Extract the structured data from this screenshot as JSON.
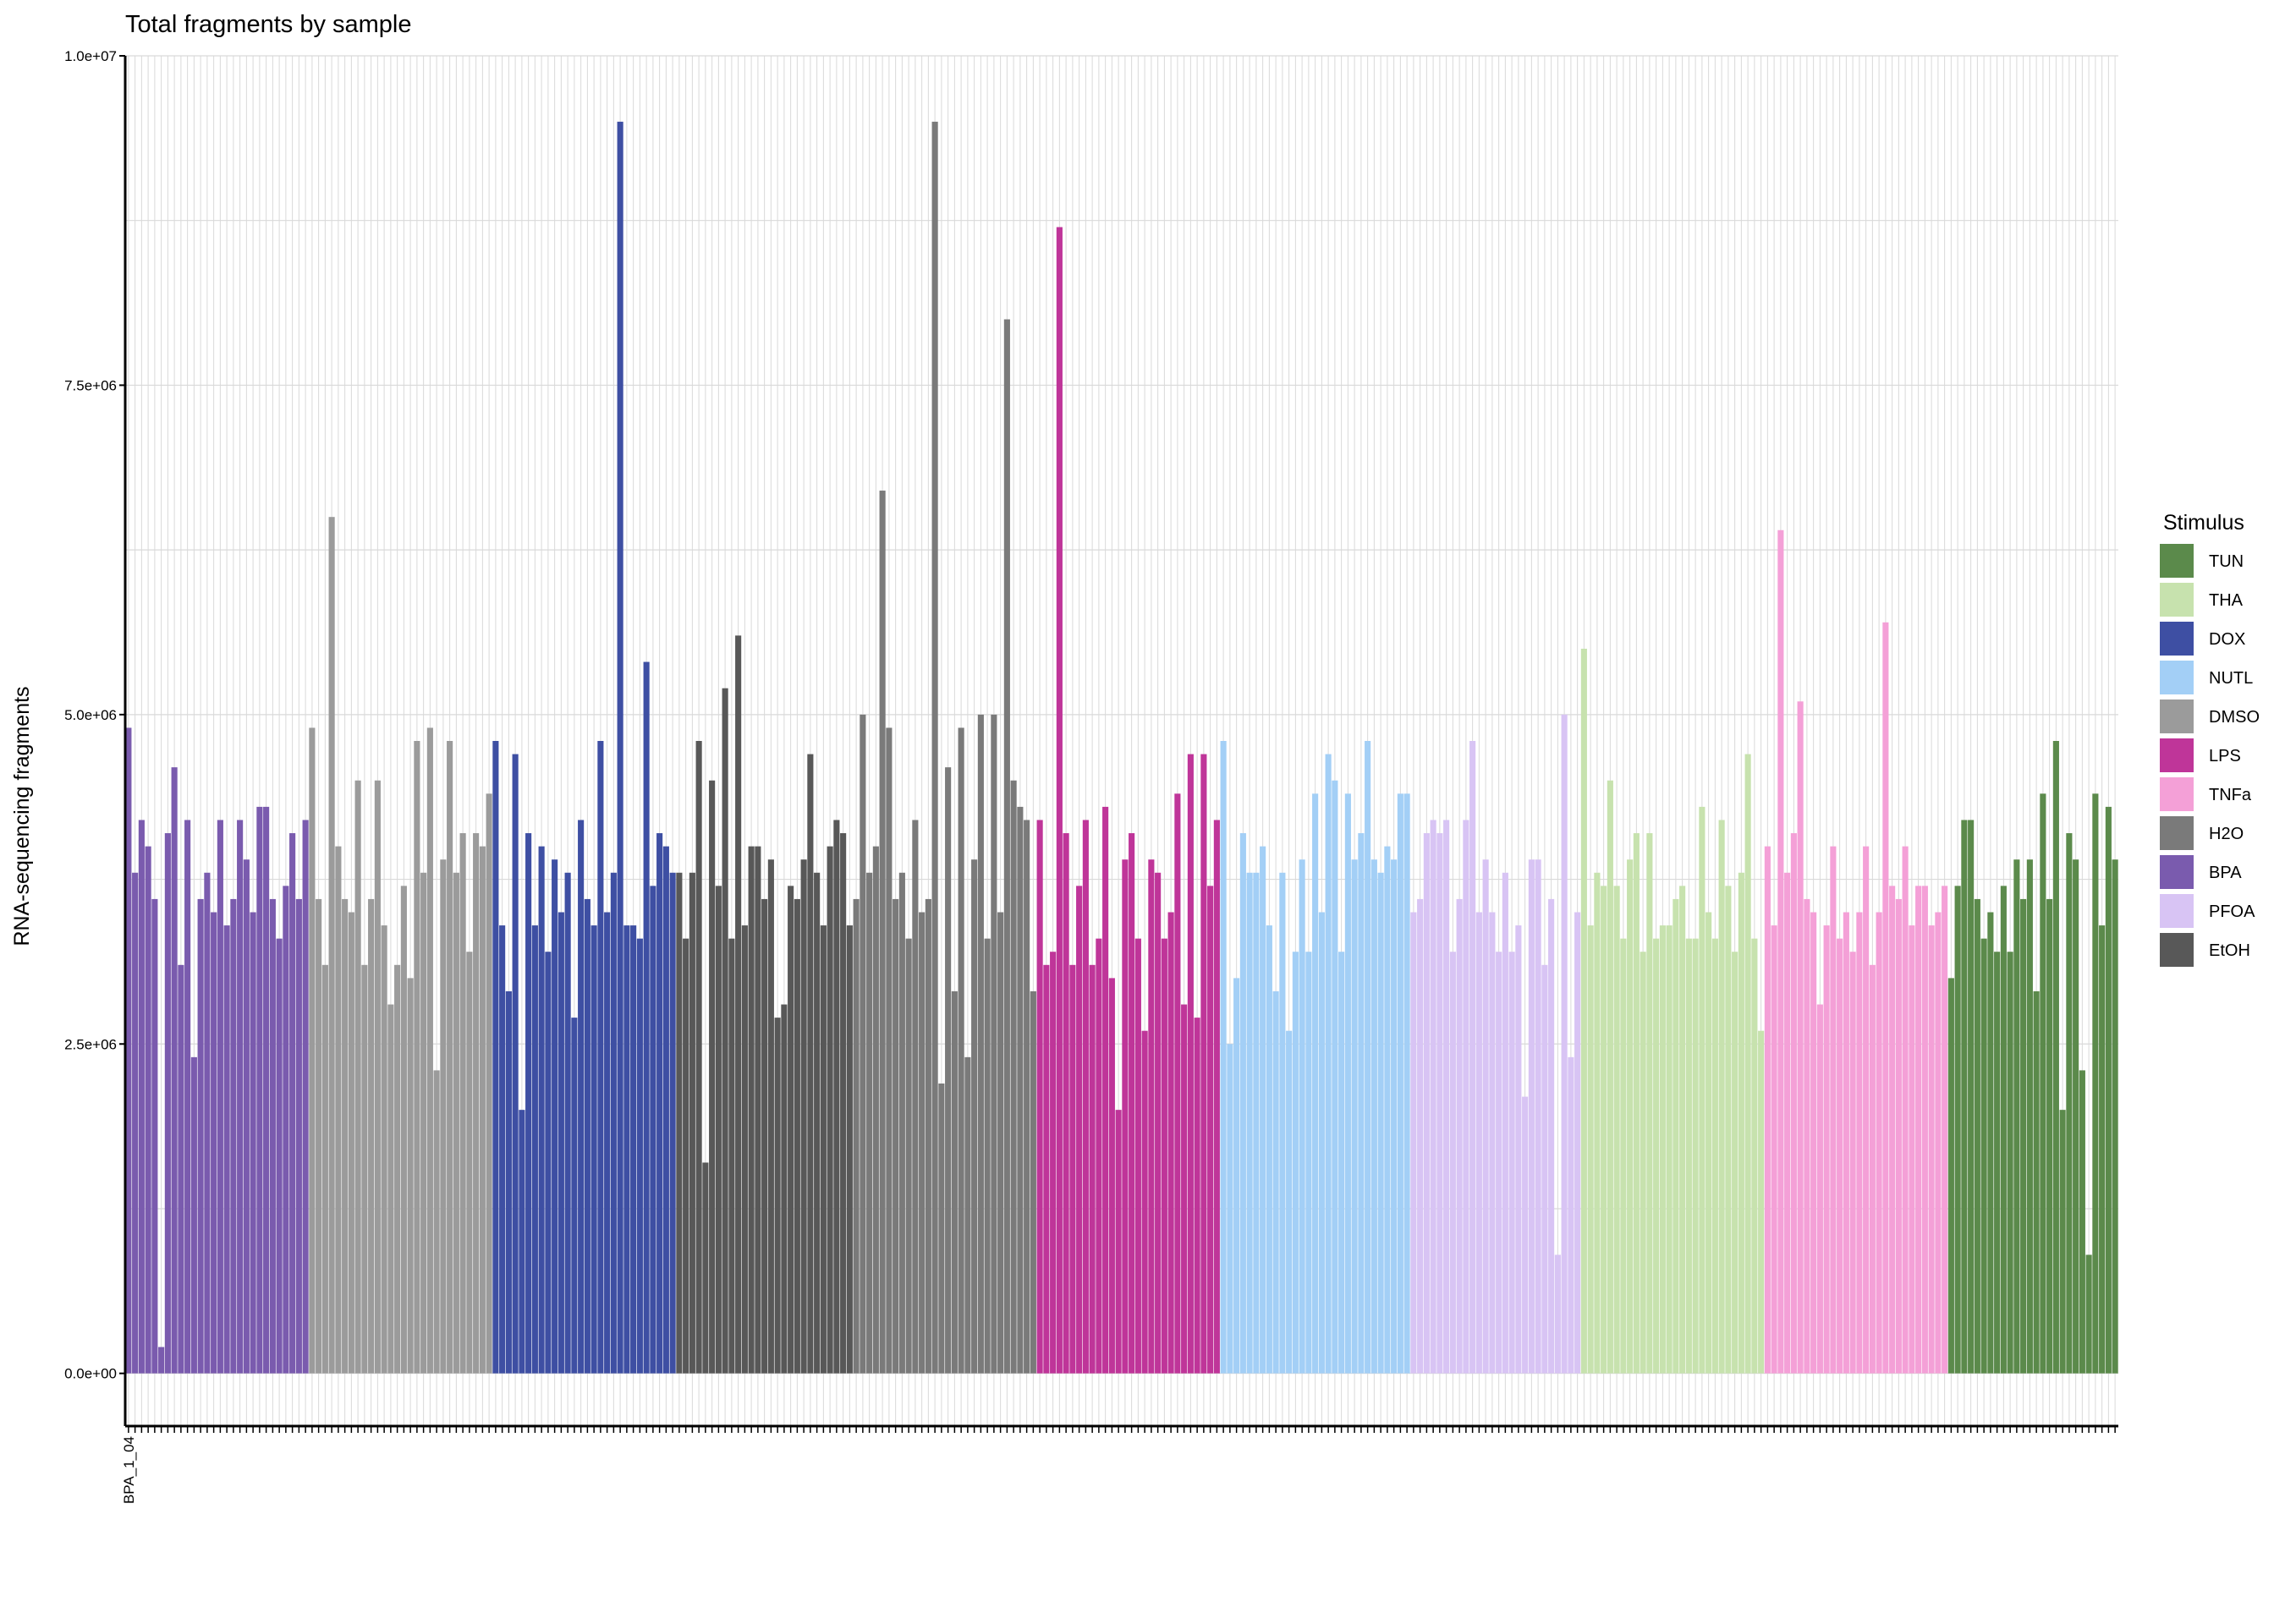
{
  "chart_data": {
    "type": "bar",
    "title": "Total fragments by sample",
    "xlabel": "",
    "ylabel": "RNA-sequencing fragments",
    "ylim": [
      -400000,
      10000000
    ],
    "yticks": [
      {
        "value": 0,
        "label": "0.0e+00"
      },
      {
        "value": 2500000,
        "label": "2.5e+06"
      },
      {
        "value": 5000000,
        "label": "5.0e+06"
      },
      {
        "value": 7500000,
        "label": "7.5e+06"
      },
      {
        "value": 10000000,
        "label": "1.0e+07"
      }
    ],
    "grid": true,
    "legend": {
      "title": "Stimulus",
      "placement": "right",
      "entries": [
        {
          "label": "TUN",
          "color": "#5B8A4B"
        },
        {
          "label": "THA",
          "color": "#C7E2AE"
        },
        {
          "label": "DOX",
          "color": "#3E4FA3"
        },
        {
          "label": "NUTL",
          "color": "#A3CFF6"
        },
        {
          "label": "DMSO",
          "color": "#9B9B9B"
        },
        {
          "label": "LPS",
          "color": "#BF3599"
        },
        {
          "label": "TNFa",
          "color": "#F4A0D7"
        },
        {
          "label": "H2O",
          "color": "#7A7A7A"
        },
        {
          "label": "BPA",
          "color": "#7A5BAE"
        },
        {
          "label": "PFOA",
          "color": "#D8C4F4"
        },
        {
          "label": "EtOH",
          "color": "#585858"
        }
      ]
    },
    "categories_first_label": "BPA_1_04",
    "series": [
      {
        "stimulus": "BPA",
        "color": "#7A5BAE",
        "values": [
          4.9,
          3.8,
          4.2,
          4.0,
          3.6,
          0.2,
          4.1,
          4.6,
          3.1,
          4.2,
          2.4,
          3.6,
          3.8,
          3.5,
          4.2,
          3.4,
          3.6,
          4.2,
          3.9,
          3.5,
          4.3,
          4.3,
          3.6,
          3.3,
          3.7,
          4.1,
          3.6,
          4.2
        ]
      },
      {
        "stimulus": "DMSO",
        "color": "#9B9B9B",
        "values": [
          4.9,
          3.6,
          3.1,
          6.5,
          4.0,
          3.6,
          3.5,
          4.5,
          3.1,
          3.6,
          4.5,
          3.4,
          2.8,
          3.1,
          3.7,
          3.0,
          4.8,
          3.8,
          4.9,
          2.3,
          3.9,
          4.8,
          3.8,
          4.1,
          3.2,
          4.1,
          4.0,
          4.4
        ]
      },
      {
        "stimulus": "DOX",
        "color": "#3E4FA3",
        "values": [
          4.8,
          3.4,
          2.9,
          4.7,
          2.0,
          4.1,
          3.4,
          4.0,
          3.2,
          3.9,
          3.5,
          3.8,
          2.7,
          4.2,
          3.6,
          3.4,
          4.8,
          3.5,
          3.8,
          9.5,
          3.4,
          3.4,
          3.3,
          5.4,
          3.7,
          4.1,
          4.0,
          3.8
        ]
      },
      {
        "stimulus": "EtOH",
        "color": "#585858",
        "values": [
          3.8,
          3.3,
          3.8,
          4.8,
          1.6,
          4.5,
          3.7,
          5.2,
          3.3,
          5.6,
          3.4,
          4.0,
          4.0,
          3.6,
          3.9,
          2.7,
          2.8,
          3.7,
          3.6,
          3.9,
          4.7,
          3.8,
          3.4,
          4.0,
          4.2,
          4.1,
          3.4
        ]
      },
      {
        "stimulus": "H2O",
        "color": "#7A7A7A",
        "values": [
          3.6,
          5.0,
          3.8,
          4.0,
          6.7,
          4.9,
          3.6,
          3.8,
          3.3,
          4.2,
          3.5,
          3.6,
          9.5,
          2.2,
          4.6,
          2.9,
          4.9,
          2.4,
          3.9,
          5.0,
          3.3,
          5.0,
          3.5,
          8.0,
          4.5,
          4.3,
          4.2,
          2.9
        ]
      },
      {
        "stimulus": "LPS",
        "color": "#BF3599",
        "values": [
          4.2,
          3.1,
          3.2,
          8.7,
          4.1,
          3.1,
          3.7,
          4.2,
          3.1,
          3.3,
          4.3,
          3.0,
          2.0,
          3.9,
          4.1,
          3.3,
          2.6,
          3.9,
          3.8,
          3.3,
          3.5,
          4.4,
          2.8,
          4.7,
          2.7,
          4.7,
          3.7,
          4.2
        ]
      },
      {
        "stimulus": "NUTL",
        "color": "#A3CFF6",
        "values": [
          4.8,
          2.5,
          3.0,
          4.1,
          3.8,
          3.8,
          4.0,
          3.4,
          2.9,
          3.8,
          2.6,
          3.2,
          3.9,
          3.2,
          4.4,
          3.5,
          4.7,
          4.5,
          3.2,
          4.4,
          3.9,
          4.1,
          4.8,
          3.9,
          3.8,
          4.0,
          3.9,
          4.4,
          4.4
        ]
      },
      {
        "stimulus": "PFOA",
        "color": "#D8C4F4",
        "values": [
          3.5,
          3.6,
          4.1,
          4.2,
          4.1,
          4.2,
          3.2,
          3.6,
          4.2,
          4.8,
          3.5,
          3.9,
          3.5,
          3.2,
          3.8,
          3.2,
          3.4,
          2.1,
          3.9,
          3.9,
          3.1,
          3.6,
          0.9,
          5.0,
          2.4,
          3.5
        ]
      },
      {
        "stimulus": "THA",
        "color": "#C7E2AE",
        "values": [
          5.5,
          3.4,
          3.8,
          3.7,
          4.5,
          3.7,
          3.3,
          3.9,
          4.1,
          3.2,
          4.1,
          3.3,
          3.4,
          3.4,
          3.6,
          3.7,
          3.3,
          3.3,
          4.3,
          3.5,
          3.3,
          4.2,
          3.7,
          3.2,
          3.8,
          4.7,
          3.3,
          2.6
        ]
      },
      {
        "stimulus": "TNFa",
        "color": "#F4A0D7",
        "values": [
          4.0,
          3.4,
          6.4,
          3.8,
          4.1,
          5.1,
          3.6,
          3.5,
          2.8,
          3.4,
          4.0,
          3.3,
          3.5,
          3.2,
          3.5,
          4.0,
          3.1,
          3.5,
          5.7,
          3.7,
          3.6,
          4.0,
          3.4,
          3.7,
          3.7,
          3.4,
          3.5,
          3.7
        ]
      },
      {
        "stimulus": "TUN",
        "color": "#5B8A4B",
        "values": [
          3.0,
          3.7,
          4.2,
          4.2,
          3.6,
          3.3,
          3.5,
          3.2,
          3.7,
          3.2,
          3.9,
          3.6,
          3.9,
          2.9,
          4.4,
          3.6,
          4.8,
          2.0,
          4.1,
          3.9,
          2.3,
          0.9,
          4.4,
          3.4,
          4.3,
          3.9
        ]
      }
    ],
    "value_unit_multiplier": 1000000
  }
}
